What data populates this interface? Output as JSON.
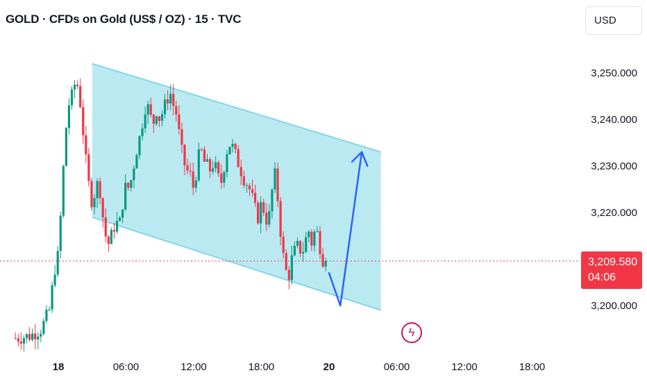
{
  "title": "GOLD · CFDs on Gold (US$ / OZ) · 15 · TVC",
  "currency_button": "USD",
  "last_price": "3,209.580",
  "countdown": "04:06",
  "event_icon": "flash-icon",
  "colors": {
    "up": "#089981",
    "down": "#f23645",
    "channel_fill": "#b2e7f1",
    "channel_edge": "#84d6e8",
    "arrow": "#2962ff",
    "price_line": "#f23645",
    "event": "#c2185b"
  },
  "chart_data": {
    "type": "candlestick",
    "symbol": "GOLD",
    "interval": "15",
    "ylim": [
      3192,
      3254
    ],
    "y_ticks": [
      "3,250.000",
      "3,240.000",
      "3,230.000",
      "3,220.000",
      "3,200.000"
    ],
    "y_tick_values": [
      3250,
      3240,
      3230,
      3220,
      3200
    ],
    "x_ticks": [
      {
        "label": "18",
        "bold": true
      },
      {
        "label": "06:00",
        "bold": false
      },
      {
        "label": "12:00",
        "bold": false
      },
      {
        "label": "18:00",
        "bold": false
      },
      {
        "label": "20",
        "bold": true
      },
      {
        "label": "06:00",
        "bold": false
      },
      {
        "label": "12:00",
        "bold": false
      },
      {
        "label": "18:00",
        "bold": false
      }
    ],
    "x_tick_hours": [
      0,
      6,
      12,
      18,
      24,
      30,
      36,
      42
    ],
    "last_price_value": 3209.58,
    "close_path": [
      [
        -3.8,
        3193
      ],
      [
        -2.5,
        3193.5
      ],
      [
        -1.5,
        3195
      ],
      [
        -0.8,
        3199
      ],
      [
        -0.3,
        3208
      ],
      [
        0,
        3211
      ],
      [
        0.3,
        3223
      ],
      [
        0.6,
        3236
      ],
      [
        0.9,
        3243
      ],
      [
        1.2,
        3245
      ],
      [
        1.5,
        3248
      ],
      [
        1.8,
        3247
      ],
      [
        2.1,
        3240
      ],
      [
        2.4,
        3232
      ],
      [
        2.7,
        3226
      ],
      [
        3.0,
        3222
      ],
      [
        3.3,
        3225
      ],
      [
        3.6,
        3227
      ],
      [
        3.9,
        3220
      ],
      [
        4.2,
        3215
      ],
      [
        4.5,
        3213
      ],
      [
        4.8,
        3216
      ],
      [
        5.1,
        3218
      ],
      [
        5.4,
        3217
      ],
      [
        5.7,
        3222
      ],
      [
        6.0,
        3226
      ],
      [
        6.3,
        3225
      ],
      [
        6.6,
        3229
      ],
      [
        6.9,
        3233
      ],
      [
        7.2,
        3236
      ],
      [
        7.5,
        3240
      ],
      [
        7.8,
        3244
      ],
      [
        8.1,
        3241
      ],
      [
        8.4,
        3239
      ],
      [
        8.7,
        3242
      ],
      [
        9.0,
        3240
      ],
      [
        9.3,
        3242
      ],
      [
        9.6,
        3244
      ],
      [
        9.9,
        3246
      ],
      [
        10.2,
        3243
      ],
      [
        10.5,
        3241
      ],
      [
        10.8,
        3235
      ],
      [
        11.1,
        3231
      ],
      [
        11.4,
        3229
      ],
      [
        11.7,
        3228
      ],
      [
        12.0,
        3225
      ],
      [
        12.3,
        3230
      ],
      [
        12.6,
        3234
      ],
      [
        12.9,
        3231
      ],
      [
        13.2,
        3230
      ],
      [
        13.5,
        3229
      ],
      [
        13.8,
        3231
      ],
      [
        14.1,
        3228
      ],
      [
        14.4,
        3226
      ],
      [
        14.7,
        3230
      ],
      [
        15.0,
        3234
      ],
      [
        15.3,
        3235
      ],
      [
        15.6,
        3233
      ],
      [
        15.9,
        3231
      ],
      [
        16.2,
        3229
      ],
      [
        16.5,
        3227
      ],
      [
        16.8,
        3226
      ],
      [
        17.1,
        3224
      ],
      [
        17.4,
        3221
      ],
      [
        17.7,
        3219
      ],
      [
        18.0,
        3222
      ],
      [
        18.3,
        3220
      ],
      [
        18.6,
        3217
      ],
      [
        18.9,
        3224
      ],
      [
        19.2,
        3228
      ],
      [
        19.5,
        3222
      ],
      [
        19.8,
        3213
      ],
      [
        20.1,
        3208
      ],
      [
        20.4,
        3206
      ],
      [
        20.7,
        3210
      ],
      [
        21.0,
        3212
      ],
      [
        21.3,
        3213
      ],
      [
        21.6,
        3211
      ],
      [
        21.9,
        3214
      ],
      [
        22.2,
        3216
      ],
      [
        22.5,
        3213
      ],
      [
        22.8,
        3217
      ],
      [
        23.1,
        3214
      ],
      [
        23.4,
        3210
      ],
      [
        23.7,
        3209.58
      ]
    ],
    "channel": {
      "upper": [
        [
          3.0,
          3252
        ],
        [
          28.6,
          3233
        ]
      ],
      "lower": [
        [
          3.0,
          3219
        ],
        [
          28.6,
          3199
        ]
      ]
    },
    "projection_arrow": [
      [
        24.0,
        3207
      ],
      [
        25.0,
        3200
      ],
      [
        26.9,
        3233
      ],
      [
        27.4,
        3230
      ]
    ]
  }
}
